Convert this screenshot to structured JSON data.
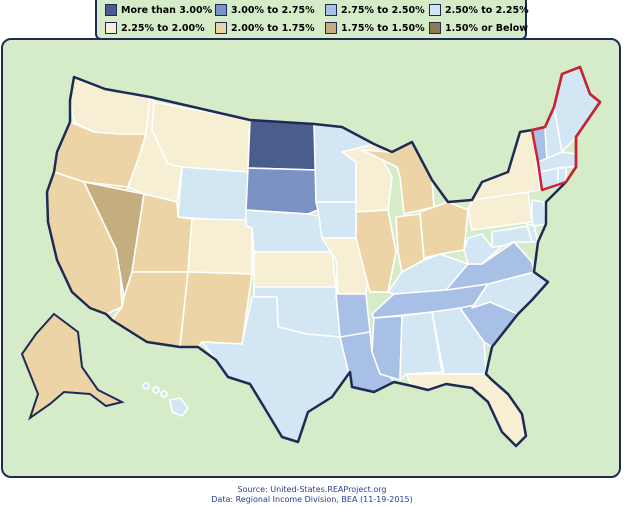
{
  "legend": {
    "items": [
      {
        "label": "More than 3.00%",
        "color": "#4a5d8c"
      },
      {
        "label": "3.00% to 2.75%",
        "color": "#7b92c4"
      },
      {
        "label": "2.75% to 2.50%",
        "color": "#a8c0e6"
      },
      {
        "label": "2.50% to 2.25%",
        "color": "#d2e6f4"
      },
      {
        "label": "2.25% to 2.00%",
        "color": "#f6efd3"
      },
      {
        "label": "2.00% to 1.75%",
        "color": "#ecd4a6"
      },
      {
        "label": "1.75% to 1.50%",
        "color": "#c4ad7e"
      },
      {
        "label": "1.50% or Below",
        "color": "#8e7a52"
      }
    ]
  },
  "map": {
    "outline_color": "#1f2a55",
    "highlight_color": "#cc2233",
    "highlighted_region": "new-england",
    "states": {
      "WA": 4,
      "OR": 5,
      "CA": 5,
      "NV": 6,
      "ID": 4,
      "MT": 4,
      "WY": 3,
      "UT": 5,
      "AZ": 5,
      "CO": 4,
      "NM": 5,
      "ND": 0,
      "SD": 1,
      "NE": 3,
      "KS": 4,
      "OK": 3,
      "TX": 3,
      "MN": 3,
      "IA": 3,
      "MO": 4,
      "AR": 2,
      "LA": 2,
      "WI": 4,
      "IL": 5,
      "MI": 5,
      "IN": 5,
      "OH": 5,
      "KY": 3,
      "TN": 2,
      "MS": 2,
      "AL": 3,
      "GA": 3,
      "FL": 4,
      "SC": 2,
      "NC": 3,
      "VA": 2,
      "WV": 3,
      "PA": 4,
      "NY": 4,
      "NJ": 3,
      "MD": 3,
      "DE": 3,
      "VT": 2,
      "ME": 3,
      "NH": 3,
      "MA": 3,
      "CT": 3,
      "RI": 3,
      "AK": 5,
      "HI": 3
    }
  },
  "source": {
    "line1": "Source:  United-States.REAProject.org",
    "line2": "Data:  Regional Income Division, BEA (11-19-2015)"
  }
}
